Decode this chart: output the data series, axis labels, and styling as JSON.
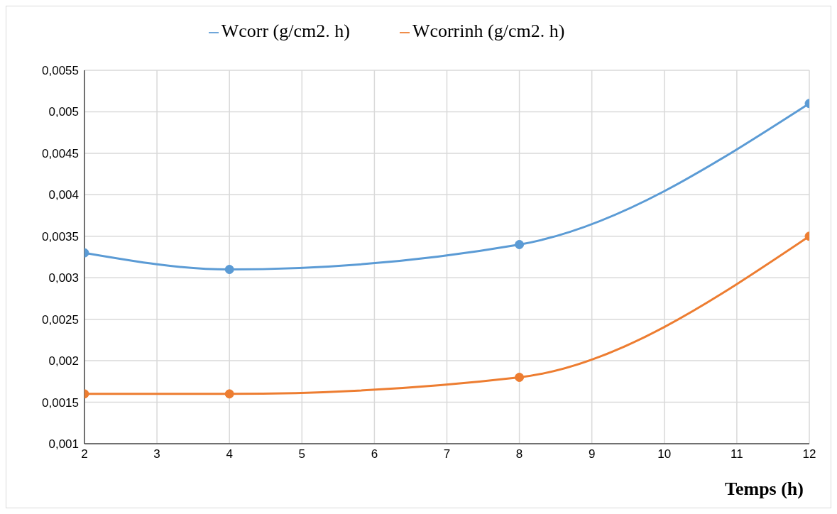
{
  "chart_data": {
    "type": "line",
    "xlabel": "Temps (h)",
    "x": [
      2,
      4,
      8,
      12
    ],
    "series": [
      {
        "name": "Wcorr (g/cm2. h)",
        "color": "#5b9bd5",
        "values": [
          0.0033,
          0.0031,
          0.0034,
          0.0051
        ]
      },
      {
        "name": "Wcorrinh (g/cm2. h)",
        "color": "#ed7d31",
        "values": [
          0.0016,
          0.0016,
          0.0018,
          0.0035
        ]
      }
    ],
    "xlim": [
      2,
      12
    ],
    "xticks": [
      2,
      3,
      4,
      5,
      6,
      7,
      8,
      9,
      10,
      11,
      12
    ],
    "ylim": [
      0.001,
      0.0055
    ],
    "yticks": [
      {
        "value": 0.001,
        "label": "0,001"
      },
      {
        "value": 0.0015,
        "label": "0,0015"
      },
      {
        "value": 0.002,
        "label": "0,002"
      },
      {
        "value": 0.0025,
        "label": "0,0025"
      },
      {
        "value": 0.003,
        "label": "0,003"
      },
      {
        "value": 0.0035,
        "label": "0,0035"
      },
      {
        "value": 0.004,
        "label": "0,004"
      },
      {
        "value": 0.0045,
        "label": "0,0045"
      },
      {
        "value": 0.005,
        "label": "0,005"
      },
      {
        "value": 0.0055,
        "label": "0,0055"
      }
    ],
    "grid": true,
    "legend": "top",
    "marker": "circle",
    "line_style": "solid"
  }
}
